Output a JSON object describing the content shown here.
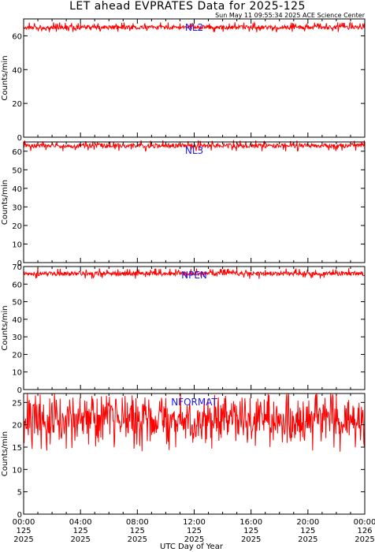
{
  "header": {
    "title": "LET ahead EVPRATES Data for 2025-125",
    "subtitle": "Sun May 11 09:55:34 2025 ACE Science Center"
  },
  "colors": {
    "series": "#ff0000",
    "panel_label": "#1a1aee",
    "axis": "#000000"
  },
  "chart_data": [
    {
      "type": "line",
      "title": "NL2",
      "ylabel": "Counts/min",
      "ylim": [
        0,
        70
      ],
      "yticks": [
        0,
        20,
        40,
        60
      ],
      "xlim": [
        0,
        24
      ],
      "baseline": 65,
      "range": [
        62,
        68
      ],
      "series": [
        {
          "values_summary": "approximately 63-68 counts/min throughout the day"
        }
      ]
    },
    {
      "type": "line",
      "title": "NL3",
      "ylabel": "Counts/min",
      "ylim": [
        0,
        65
      ],
      "yticks": [
        0,
        10,
        20,
        30,
        40,
        50,
        60
      ],
      "xlim": [
        0,
        24
      ],
      "baseline": 63,
      "range": [
        60,
        66
      ],
      "series": [
        {
          "values_summary": "approximately 61-66 counts/min throughout the day"
        }
      ]
    },
    {
      "type": "line",
      "title": "NPEN",
      "ylabel": "Counts/min",
      "ylim": [
        0,
        70
      ],
      "yticks": [
        0,
        10,
        20,
        30,
        40,
        50,
        60,
        70
      ],
      "xlim": [
        0,
        24
      ],
      "baseline": 66,
      "range": [
        63,
        69
      ],
      "series": [
        {
          "values_summary": "approximately 63-69 counts/min throughout the day"
        }
      ]
    },
    {
      "type": "line",
      "title": "NFORMAT",
      "ylabel": "Counts/min",
      "ylim": [
        0,
        27
      ],
      "yticks": [
        0,
        5,
        10,
        15,
        20,
        25
      ],
      "xlim": [
        0,
        24
      ],
      "baseline": 21,
      "range": [
        14,
        27
      ],
      "series": [
        {
          "values_summary": "noisy, approximately 14-27 counts/min, centered near 21"
        }
      ]
    }
  ],
  "x_axis": {
    "label": "UTC Day of Year",
    "ticks": [
      {
        "hour": 0,
        "time": "00:00",
        "doy": "125",
        "year": "2025"
      },
      {
        "hour": 4,
        "time": "04:00",
        "doy": "125",
        "year": "2025"
      },
      {
        "hour": 8,
        "time": "08:00",
        "doy": "125",
        "year": "2025"
      },
      {
        "hour": 12,
        "time": "12:00",
        "doy": "125",
        "year": "2025"
      },
      {
        "hour": 16,
        "time": "16:00",
        "doy": "125",
        "year": "2025"
      },
      {
        "hour": 20,
        "time": "20:00",
        "doy": "125",
        "year": "2025"
      },
      {
        "hour": 24,
        "time": "00:00",
        "doy": "126",
        "year": "2025"
      }
    ]
  }
}
